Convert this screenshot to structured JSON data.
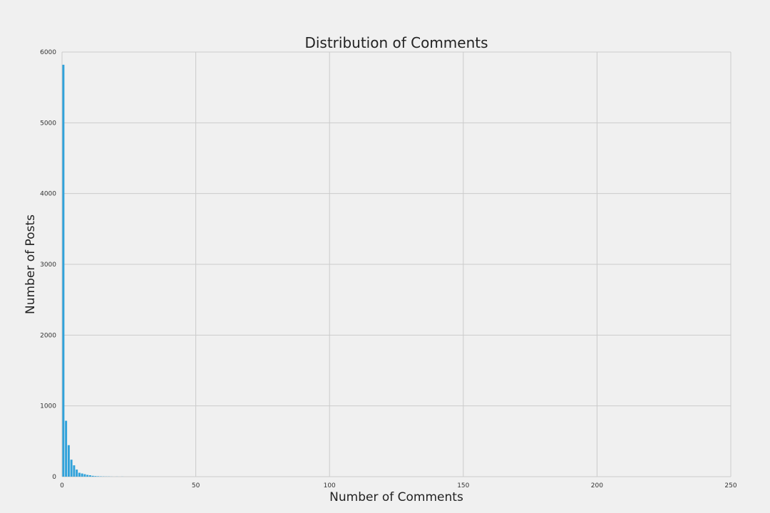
{
  "chart_data": {
    "type": "bar",
    "title": "Distribution of Comments",
    "xlabel": "Number of Comments",
    "ylabel": "Number of Posts",
    "xlim": [
      0,
      250
    ],
    "ylim": [
      0,
      6000
    ],
    "xticks": [
      0,
      50,
      100,
      150,
      200,
      250
    ],
    "yticks": [
      0,
      1000,
      2000,
      3000,
      4000,
      5000,
      6000
    ],
    "grid": true,
    "bar_color": "#30a2da",
    "bin_width": 1,
    "bins": [
      {
        "x": 0,
        "value": 5820
      },
      {
        "x": 1,
        "value": 790
      },
      {
        "x": 2,
        "value": 445
      },
      {
        "x": 3,
        "value": 240
      },
      {
        "x": 4,
        "value": 160
      },
      {
        "x": 5,
        "value": 100
      },
      {
        "x": 6,
        "value": 55
      },
      {
        "x": 7,
        "value": 45
      },
      {
        "x": 8,
        "value": 35
      },
      {
        "x": 9,
        "value": 25
      },
      {
        "x": 10,
        "value": 20
      },
      {
        "x": 11,
        "value": 12
      },
      {
        "x": 12,
        "value": 8
      },
      {
        "x": 13,
        "value": 6
      },
      {
        "x": 14,
        "value": 4
      },
      {
        "x": 15,
        "value": 3
      },
      {
        "x": 16,
        "value": 2
      },
      {
        "x": 17,
        "value": 2
      },
      {
        "x": 18,
        "value": 1
      },
      {
        "x": 20,
        "value": 1
      },
      {
        "x": 22,
        "value": 1
      }
    ]
  }
}
